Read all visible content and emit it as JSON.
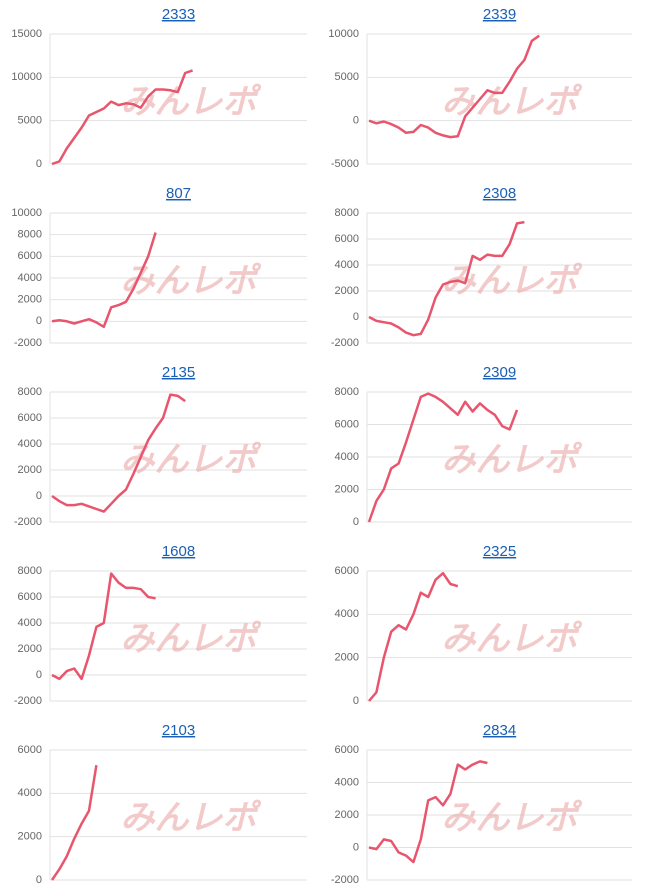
{
  "watermark": "みんレポ",
  "chart_data": [
    {
      "type": "line",
      "title": "2333",
      "color": "#e8566e",
      "grid": true,
      "ylim": [
        0,
        15000
      ],
      "yticks": [
        0,
        5000,
        10000,
        15000
      ],
      "values": [
        0,
        300,
        1800,
        3000,
        4200,
        5600,
        6000,
        6400,
        7200,
        6800,
        7000,
        6900,
        6500,
        7800,
        8600,
        8600,
        8500,
        8300,
        10500,
        10800
      ]
    },
    {
      "type": "line",
      "title": "2339",
      "color": "#e8566e",
      "grid": true,
      "ylim": [
        -5000,
        10000
      ],
      "yticks": [
        -5000,
        0,
        5000,
        10000
      ],
      "values": [
        0,
        -300,
        -100,
        -400,
        -800,
        -1400,
        -1300,
        -500,
        -800,
        -1400,
        -1700,
        -1900,
        -1800,
        500,
        1500,
        2500,
        3500,
        3200,
        3200,
        4500,
        6000,
        7000,
        9200,
        9800
      ]
    },
    {
      "type": "line",
      "title": "807",
      "color": "#e8566e",
      "grid": true,
      "ylim": [
        -2000,
        10000
      ],
      "yticks": [
        -2000,
        0,
        2000,
        4000,
        6000,
        8000,
        10000
      ],
      "values": [
        0,
        100,
        0,
        -200,
        0,
        200,
        -100,
        -500,
        1300,
        1500,
        1800,
        3000,
        4500,
        6000,
        8200
      ]
    },
    {
      "type": "line",
      "title": "2308",
      "color": "#e8566e",
      "grid": true,
      "ylim": [
        -2000,
        8000
      ],
      "yticks": [
        -2000,
        0,
        2000,
        4000,
        6000,
        8000
      ],
      "values": [
        0,
        -300,
        -400,
        -500,
        -800,
        -1200,
        -1400,
        -1300,
        -200,
        1500,
        2500,
        2700,
        2800,
        2600,
        4700,
        4400,
        4800,
        4700,
        4700,
        5600,
        7200,
        7300
      ]
    },
    {
      "type": "line",
      "title": "2135",
      "color": "#e8566e",
      "grid": true,
      "ylim": [
        -2000,
        8000
      ],
      "yticks": [
        -2000,
        0,
        2000,
        4000,
        6000,
        8000
      ],
      "values": [
        0,
        -400,
        -700,
        -700,
        -600,
        -800,
        -1000,
        -1200,
        -600,
        0,
        500,
        1700,
        3000,
        4300,
        5200,
        6000,
        7800,
        7700,
        7300
      ]
    },
    {
      "type": "line",
      "title": "2309",
      "color": "#e8566e",
      "grid": true,
      "ylim": [
        0,
        8000
      ],
      "yticks": [
        0,
        2000,
        4000,
        6000,
        8000
      ],
      "values": [
        0,
        1300,
        2000,
        3300,
        3600,
        4900,
        6300,
        7700,
        7900,
        7700,
        7400,
        7000,
        6600,
        7400,
        6800,
        7300,
        6900,
        6600,
        5900,
        5700,
        6900
      ]
    },
    {
      "type": "line",
      "title": "1608",
      "color": "#e8566e",
      "grid": true,
      "ylim": [
        -2000,
        8000
      ],
      "yticks": [
        -2000,
        0,
        2000,
        4000,
        6000,
        8000
      ],
      "values": [
        0,
        -300,
        300,
        500,
        -300,
        1500,
        3700,
        4000,
        7800,
        7100,
        6700,
        6700,
        6600,
        6000,
        5900
      ]
    },
    {
      "type": "line",
      "title": "2325",
      "color": "#e8566e",
      "grid": true,
      "ylim": [
        0,
        6000
      ],
      "yticks": [
        0,
        2000,
        4000,
        6000
      ],
      "values": [
        0,
        400,
        2000,
        3200,
        3500,
        3300,
        4000,
        5000,
        4800,
        5600,
        5900,
        5400,
        5300
      ]
    },
    {
      "type": "line",
      "title": "2103",
      "color": "#e8566e",
      "grid": true,
      "ylim": [
        0,
        6000
      ],
      "yticks": [
        0,
        2000,
        4000,
        6000
      ],
      "values": [
        0,
        500,
        1100,
        1900,
        2600,
        3200,
        5300
      ]
    },
    {
      "type": "line",
      "title": "2834",
      "color": "#e8566e",
      "grid": true,
      "ylim": [
        -2000,
        6000
      ],
      "yticks": [
        -2000,
        0,
        2000,
        4000,
        6000
      ],
      "values": [
        0,
        -100,
        500,
        400,
        -300,
        -500,
        -900,
        500,
        2900,
        3100,
        2600,
        3300,
        5100,
        4800,
        5100,
        5300,
        5200
      ]
    }
  ]
}
